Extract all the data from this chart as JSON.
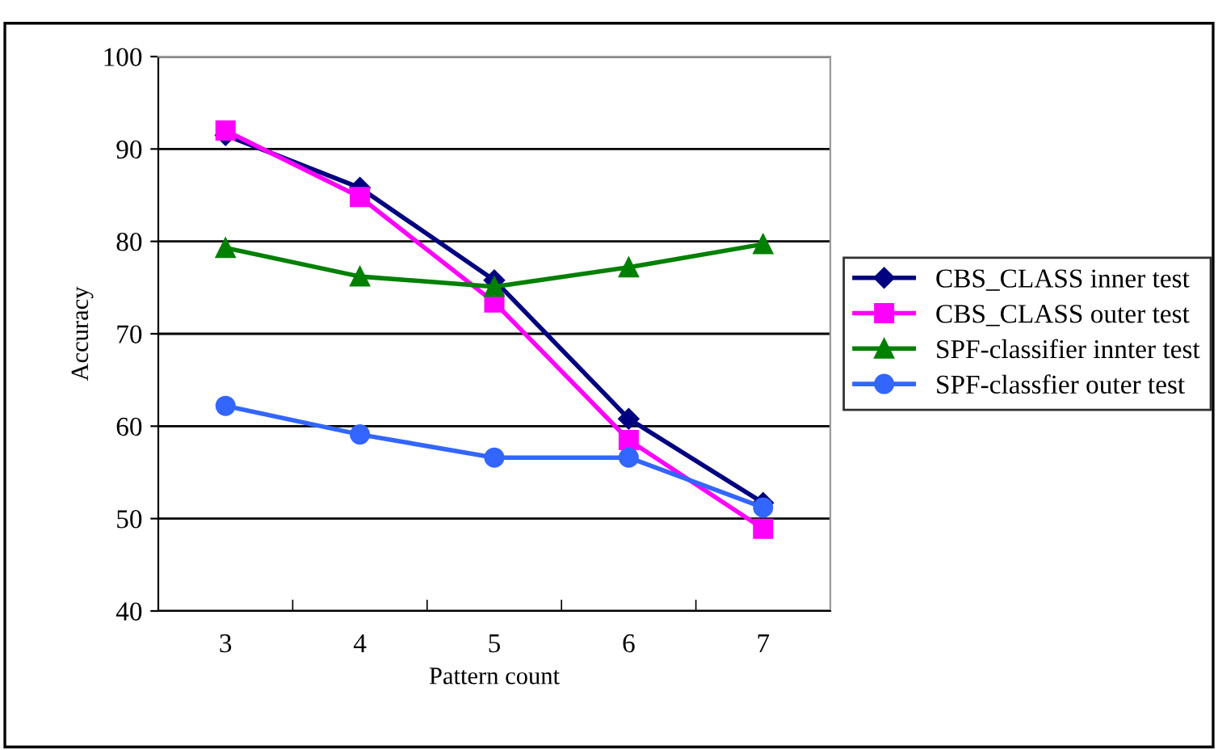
{
  "chart_data": {
    "type": "line",
    "xlabel": "Pattern count",
    "ylabel": "Accuracy",
    "categories": [
      "3",
      "4",
      "5",
      "6",
      "7"
    ],
    "series": [
      {
        "name": "CBS_CLASS inner test",
        "color": "#000080",
        "marker": "diamond",
        "values": [
          91.5,
          85.8,
          75.8,
          60.8,
          51.7
        ]
      },
      {
        "name": "CBS_CLASS outer test",
        "color": "#ff00ff",
        "marker": "square",
        "values": [
          92,
          84.8,
          73.4,
          58.5,
          48.9
        ]
      },
      {
        "name": "SPF-classifier innter test",
        "color": "#008000",
        "marker": "triangle",
        "values": [
          79.3,
          76.2,
          75.1,
          77.2,
          79.7
        ]
      },
      {
        "name": "SPF-classfier outer test",
        "color": "#3366ff",
        "marker": "circle",
        "values": [
          62.2,
          59.1,
          56.6,
          56.6,
          51.2
        ]
      }
    ],
    "ylim": [
      40,
      100
    ],
    "yticks": [
      40,
      50,
      60,
      70,
      80,
      90,
      100
    ],
    "grid": "y",
    "legend": "right",
    "line_style": "solid"
  }
}
